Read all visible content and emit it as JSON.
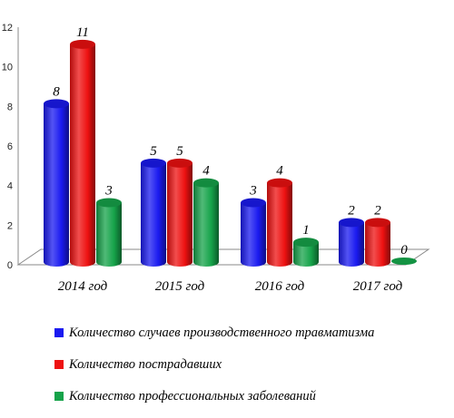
{
  "chart_data": {
    "type": "bar",
    "categories": [
      "2014 год",
      "2015 год",
      "2016 год",
      "2017 год"
    ],
    "series": [
      {
        "name": "Количество случаев производственного травматизма",
        "values": [
          8,
          5,
          3,
          2
        ],
        "color": "#1a1af0"
      },
      {
        "name": "Количество пострадавших",
        "values": [
          11,
          5,
          4,
          2
        ],
        "color": "#ee1111"
      },
      {
        "name": "Количество профессиональных заболеваний",
        "values": [
          3,
          4,
          1,
          0
        ],
        "color": "#16a34a"
      }
    ],
    "data_labels": [
      [
        "8",
        "5",
        "3",
        "2"
      ],
      [
        "11",
        "5",
        "4",
        "2"
      ],
      [
        "3",
        "4",
        "1",
        "0"
      ]
    ],
    "yticks": [
      "0",
      "2",
      "4",
      "6",
      "8",
      "10",
      "12"
    ],
    "ylim": [
      0,
      12
    ],
    "grid": false,
    "legend_position": "bottom",
    "style": "3d-cylinder"
  }
}
